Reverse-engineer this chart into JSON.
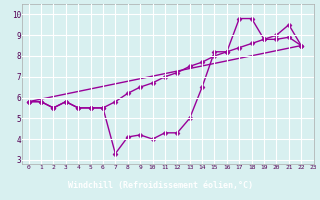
{
  "line1_y": [
    5.8,
    5.8,
    5.5,
    5.8,
    5.5,
    5.5,
    5.5,
    3.3,
    4.1,
    4.2,
    4.0,
    4.3,
    4.3,
    5.0,
    6.5,
    8.2,
    8.2,
    9.8,
    9.8,
    8.8,
    9.0,
    9.5,
    8.5
  ],
  "line2_y": [
    5.8,
    5.8,
    5.5,
    5.8,
    5.5,
    5.5,
    5.5,
    5.8,
    6.2,
    6.5,
    6.7,
    7.0,
    7.2,
    7.5,
    7.7,
    8.0,
    8.2,
    8.4,
    8.6,
    8.8,
    8.8,
    8.9,
    8.5
  ],
  "line3_x": [
    0,
    22
  ],
  "line3_y": [
    5.8,
    8.5
  ],
  "color": "#990099",
  "bg_color": "#d8f0f0",
  "grid_color": "#b0d8d8",
  "xlabel": "Windchill (Refroidissement éolien,°C)",
  "xlabel_bg": "#8080c0",
  "xlabel_color": "#ffffff",
  "xlim": [
    -0.5,
    23
  ],
  "ylim": [
    2.8,
    10.5
  ],
  "yticks": [
    3,
    4,
    5,
    6,
    7,
    8,
    9,
    10
  ],
  "xticks": [
    0,
    1,
    2,
    3,
    4,
    5,
    6,
    7,
    8,
    9,
    10,
    11,
    12,
    13,
    14,
    15,
    16,
    17,
    18,
    19,
    20,
    21,
    22,
    23
  ],
  "marker": "D",
  "markersize": 2.5,
  "linewidth": 1.0
}
